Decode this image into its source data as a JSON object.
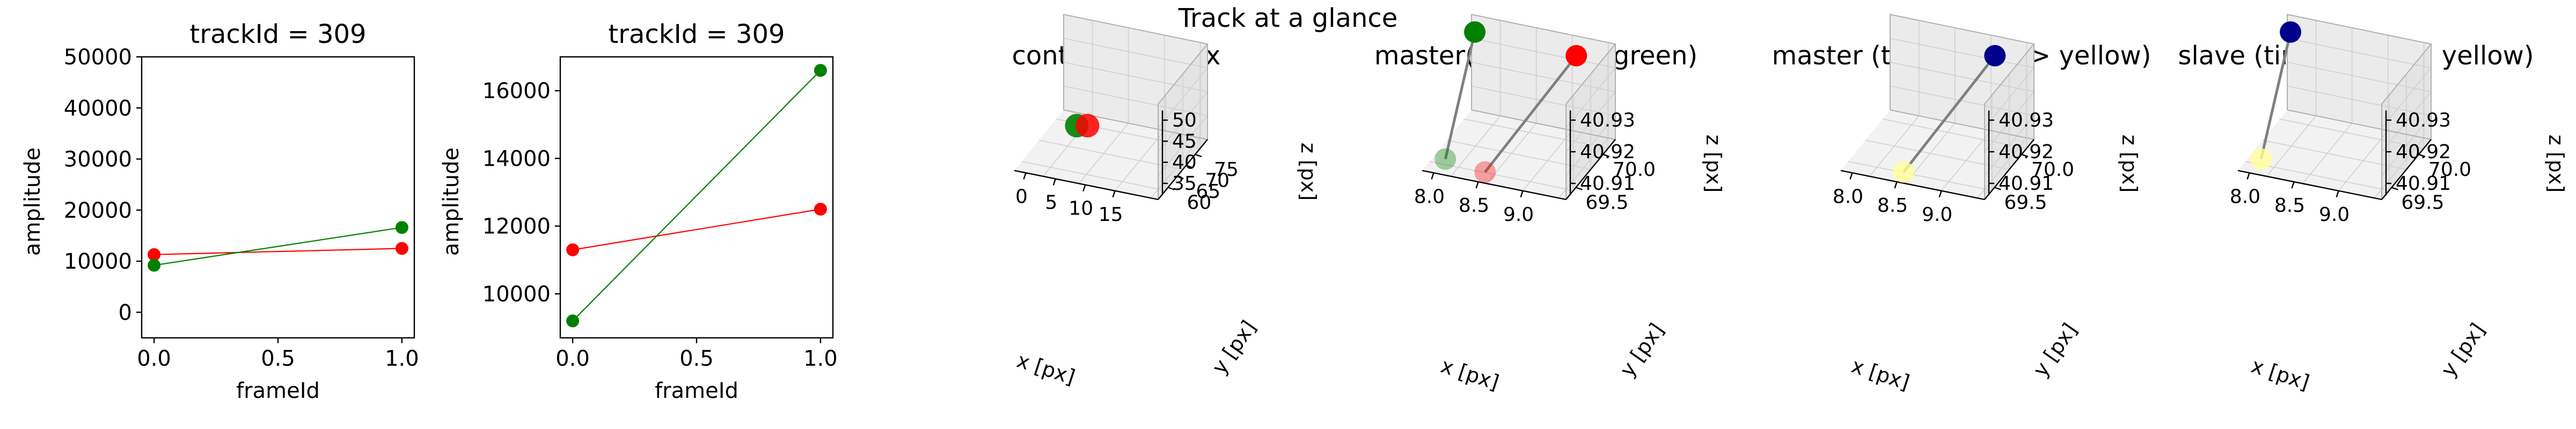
{
  "suptitle": "Track at a glance",
  "colors": {
    "master": "#ff0000",
    "slave": "#008000",
    "time_start": "#00008b",
    "time_end": "#ffff99",
    "connector": "#808080"
  },
  "chart_data": [
    {
      "type": "line",
      "title": "trackId = 309",
      "xlabel": "frameId",
      "ylabel": "amplitude",
      "xlim": [
        -0.05,
        1.05
      ],
      "ylim": [
        -5000,
        50000
      ],
      "xticks": [
        "0.0",
        "0.5",
        "1.0"
      ],
      "yticks": [
        "0",
        "10000",
        "20000",
        "30000",
        "40000",
        "50000"
      ],
      "series": [
        {
          "color": "#ff0000",
          "x": [
            0,
            1
          ],
          "y": [
            11300,
            12500
          ]
        },
        {
          "color": "#008000",
          "x": [
            0,
            1
          ],
          "y": [
            9200,
            16600
          ]
        }
      ]
    },
    {
      "type": "line",
      "title": "trackId = 309",
      "xlabel": "frameId",
      "ylabel": "amplitude",
      "xlim": [
        -0.05,
        1.05
      ],
      "ylim": [
        8700,
        17000
      ],
      "xticks": [
        "0.0",
        "0.5",
        "1.0"
      ],
      "yticks": [
        "10000",
        "12000",
        "14000",
        "16000"
      ],
      "series": [
        {
          "color": "#ff0000",
          "x": [
            0,
            1
          ],
          "y": [
            11300,
            12500
          ]
        },
        {
          "color": "#008000",
          "x": [
            0,
            1
          ],
          "y": [
            9200,
            16600
          ]
        }
      ]
    },
    {
      "type": "scatter",
      "title": "context +- 10px",
      "xlabel": "x [px]",
      "ylabel": "y [px]",
      "zlabel": "z [px]",
      "xticks": [
        "0",
        "5",
        "10",
        "15"
      ],
      "yticks": [
        "60",
        "65",
        "70",
        "75"
      ],
      "zticks": [
        "35",
        "40",
        "45",
        "50"
      ],
      "points": [
        {
          "x": 8.6,
          "y": 69.7,
          "z": 40.91,
          "color": "#008000"
        },
        {
          "x": 9.0,
          "y": 69.9,
          "z": 40.92,
          "color": "#ff0000"
        }
      ]
    },
    {
      "type": "scatter",
      "title": "master(red) slave(green)",
      "xlabel": "x [px]",
      "ylabel": "y [px]",
      "zlabel": "z [px]",
      "xticks": [
        "8.0",
        "8.5",
        "9.0"
      ],
      "yticks": [
        "69.5",
        "70.0"
      ],
      "zticks": [
        "40.91",
        "40.92",
        "40.93"
      ],
      "tracks": [
        {
          "name": "slave",
          "color": "#008000",
          "points": [
            {
              "x": 8.0,
              "y": 69.5,
              "z": 40.94
            },
            {
              "x": 8.0,
              "y": 69.5,
              "z": 40.905
            }
          ]
        },
        {
          "name": "master",
          "color": "#ff0000",
          "points": [
            {
              "x": 9.2,
              "y": 70.1,
              "z": 40.945
            },
            {
              "x": 8.7,
              "y": 69.6,
              "z": 40.905
            }
          ]
        }
      ]
    },
    {
      "type": "scatter",
      "title": "master (time: blue -> yellow)",
      "xlabel": "x [px]",
      "ylabel": "y [px]",
      "zlabel": "z [px]",
      "xticks": [
        "8.0",
        "8.5",
        "9.0"
      ],
      "yticks": [
        "69.5",
        "70.0"
      ],
      "zticks": [
        "40.91",
        "40.92",
        "40.93"
      ],
      "points": [
        {
          "x": 9.2,
          "y": 70.1,
          "z": 40.945,
          "color": "#00008b"
        },
        {
          "x": 8.7,
          "y": 69.6,
          "z": 40.905,
          "color": "#ffff99"
        }
      ]
    },
    {
      "type": "scatter",
      "title": "slave (time: blue -> yellow)",
      "xlabel": "x [px]",
      "ylabel": "y [px]",
      "zlabel": "z [px]",
      "xticks": [
        "8.0",
        "8.5",
        "9.0"
      ],
      "yticks": [
        "69.5",
        "70.0"
      ],
      "zticks": [
        "40.91",
        "40.92",
        "40.93"
      ],
      "points": [
        {
          "x": 8.0,
          "y": 69.5,
          "z": 40.94,
          "color": "#00008b"
        },
        {
          "x": 8.0,
          "y": 69.5,
          "z": 40.905,
          "color": "#ffff99"
        }
      ]
    }
  ]
}
